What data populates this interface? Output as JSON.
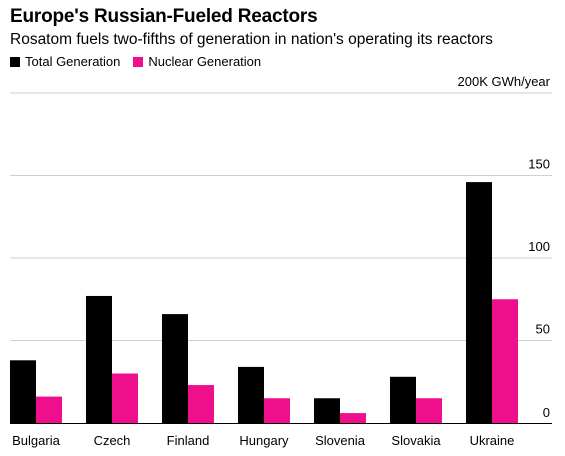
{
  "title": "Europe's Russian-Fueled Reactors",
  "subtitle": "Rosatom fuels two-fifths of generation in nation's operating its reactors",
  "colors": {
    "total": "#000000",
    "nuclear": "#ef0e8c",
    "grid": "#cfcfcf"
  },
  "chart_data": {
    "type": "bar",
    "categories": [
      "Bulgaria",
      "Czech",
      "Finland",
      "Hungary",
      "Slovenia",
      "Slovakia",
      "Ukraine"
    ],
    "series": [
      {
        "name": "Total Generation",
        "values": [
          38,
          77,
          66,
          34,
          15,
          28,
          146
        ]
      },
      {
        "name": "Nuclear Generation",
        "values": [
          16,
          30,
          23,
          15,
          6,
          15,
          75
        ]
      }
    ],
    "ylim": [
      0,
      200
    ],
    "yticks": [
      0,
      50,
      100,
      150,
      200
    ],
    "ytick_labels": [
      "0",
      "50",
      "100",
      "150",
      "200K GWh/year"
    ],
    "grid": true,
    "legend_position": "top-left"
  }
}
